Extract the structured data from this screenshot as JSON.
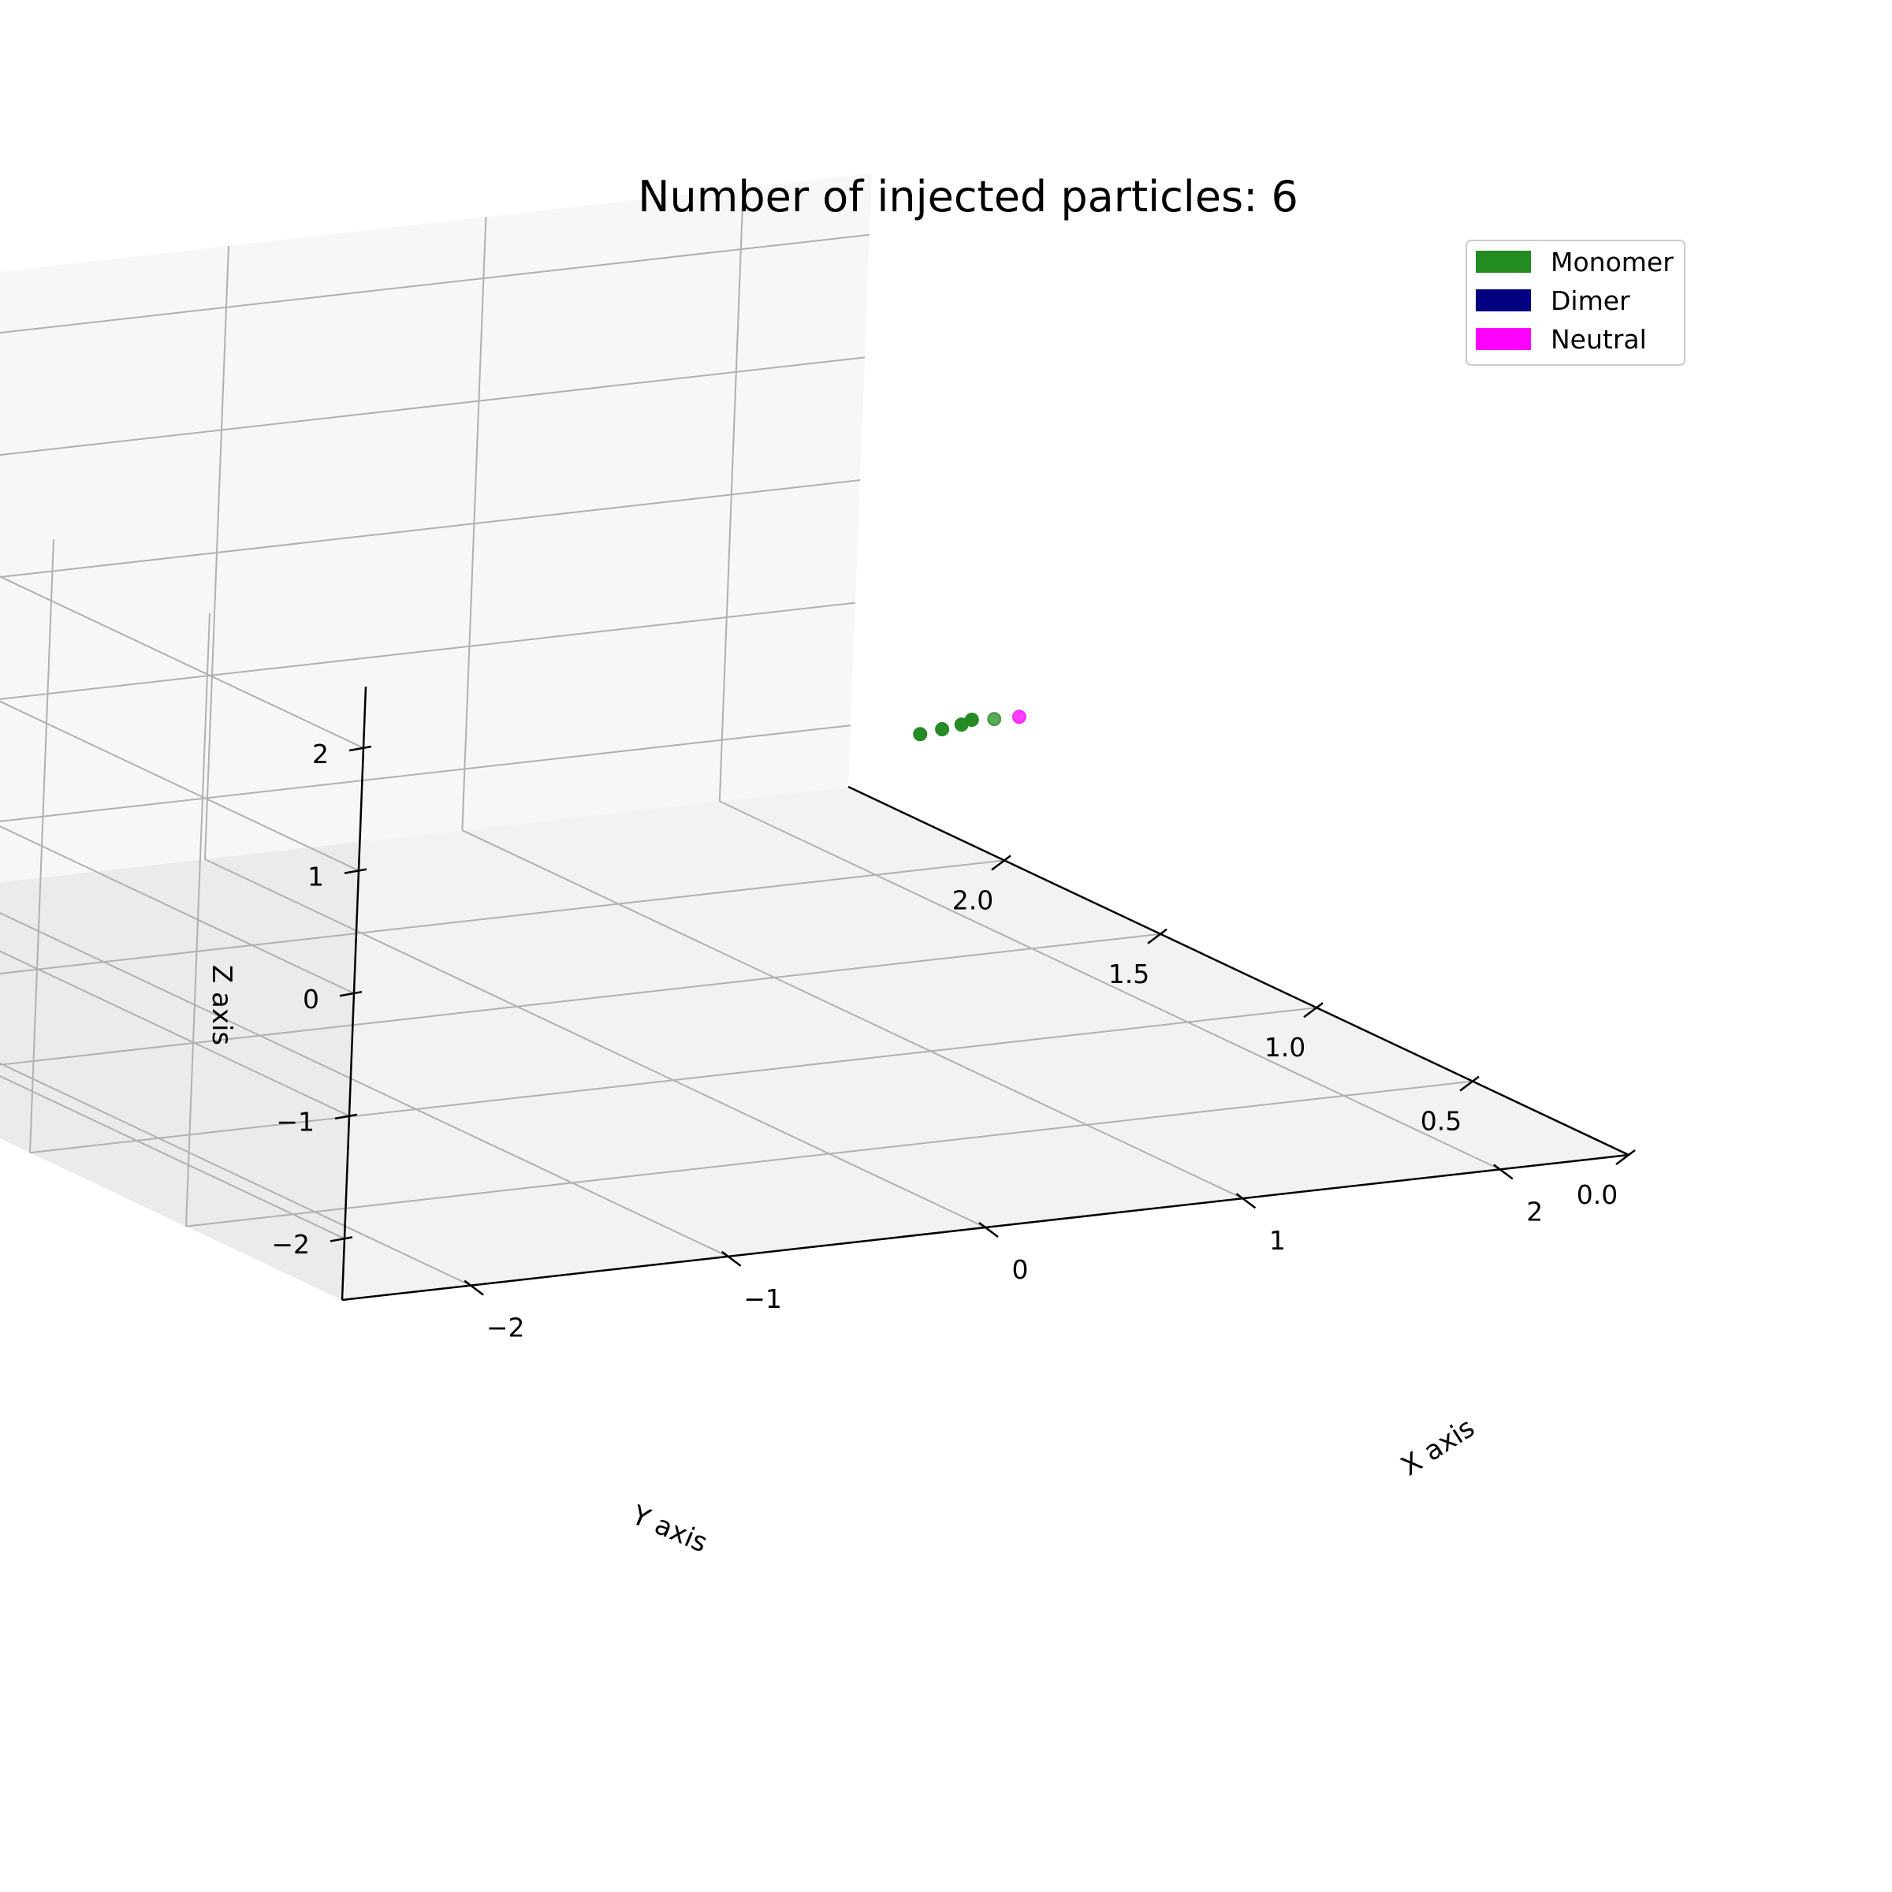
{
  "chart_data": {
    "type": "scatter3d",
    "title": "Number of injected particles: 6",
    "xlabel": "X axis",
    "ylabel": "Y axis",
    "zlabel": "Z axis",
    "xlim": [
      2.5,
      -2.5
    ],
    "ylim": [
      0.0,
      2.5
    ],
    "zlim": [
      -2.5,
      2.5
    ],
    "xticks": [
      2,
      1,
      0,
      -1,
      -2
    ],
    "yticks": [
      0.0,
      0.5,
      1.0,
      1.5,
      2.0
    ],
    "zticks": [
      -2,
      -1,
      0,
      1,
      2
    ],
    "xtick_labels": [
      "2",
      "1",
      "0",
      "−1",
      "−2"
    ],
    "ytick_labels": [
      "0.0",
      "0.5",
      "1.0",
      "1.5",
      "2.0"
    ],
    "ztick_labels": [
      "−2",
      "−1",
      "0",
      "1",
      "2"
    ],
    "grid": true,
    "legend_position": "top-right",
    "legend": [
      {
        "label": "Monomer",
        "color": "#228B22"
      },
      {
        "label": "Dimer",
        "color": "#000080"
      },
      {
        "label": "Neutral",
        "color": "#FF00FF"
      }
    ],
    "series": [
      {
        "name": "Monomer",
        "color": "#228B22",
        "points": [
          {
            "x": 0.02,
            "y": 0.05,
            "z": 1.58
          },
          {
            "x": -0.03,
            "y": 0.08,
            "z": 1.55
          },
          {
            "x": -0.02,
            "y": 0.12,
            "z": 1.46
          },
          {
            "x": -0.12,
            "y": 0.1,
            "z": 1.47
          },
          {
            "x": -0.18,
            "y": 0.12,
            "z": 1.42
          }
        ]
      },
      {
        "name": "Dimer",
        "color": "#000080",
        "points": []
      },
      {
        "name": "Neutral",
        "color": "#FF00FF",
        "points": [
          {
            "x": 0.08,
            "y": 0.02,
            "z": 1.62
          }
        ]
      }
    ]
  }
}
